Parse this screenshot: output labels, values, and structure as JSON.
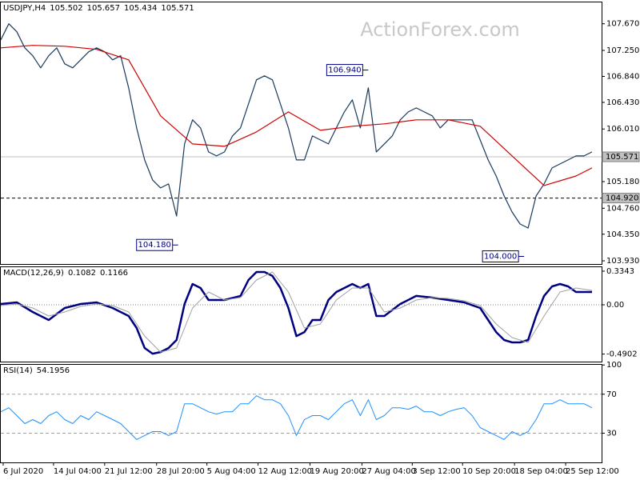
{
  "chart_data": [
    {
      "type": "line",
      "title": "USDJPY,H4",
      "header_values": [
        105.502,
        105.657,
        105.434,
        105.571
      ],
      "watermark": "ActionForex.com",
      "xlim": [
        0,
        376
      ],
      "ylim": [
        103.88,
        108.02
      ],
      "yticks": [
        {
          "value": 107.67,
          "label": "107.670"
        },
        {
          "value": 107.25,
          "label": "107.250"
        },
        {
          "value": 106.84,
          "label": "106.840"
        },
        {
          "value": 106.43,
          "label": "106.430"
        },
        {
          "value": 106.01,
          "label": "106.010"
        },
        {
          "value": 105.18,
          "label": "105.180"
        },
        {
          "value": 104.76,
          "label": "104.760"
        },
        {
          "value": 104.35,
          "label": "104.350"
        },
        {
          "value": 103.93,
          "label": "103.930"
        }
      ],
      "levels": [
        {
          "value": 105.571,
          "style": "solid",
          "color": "#c0c0c0",
          "box": true
        },
        {
          "value": 104.92,
          "label": "104.920",
          "style": "dashed",
          "color": "#000000",
          "box": true
        }
      ],
      "series": [
        {
          "color": "#1a3a5c",
          "width": 1.2,
          "x": [
            0,
            5,
            10,
            15,
            20,
            25,
            30,
            35,
            40,
            45,
            50,
            55,
            60,
            65,
            70,
            75,
            80,
            85,
            90,
            95,
            100,
            105,
            110,
            115,
            120,
            125,
            130,
            135,
            140,
            145,
            150,
            155,
            160,
            165,
            170,
            175,
            180,
            185,
            190,
            195,
            200,
            205,
            210,
            215,
            220,
            225,
            230,
            235,
            240,
            245,
            250,
            255,
            260,
            265,
            270,
            275,
            280,
            285,
            290,
            295,
            300,
            305,
            310,
            315,
            320,
            325,
            330,
            335,
            340,
            345,
            350,
            355,
            360,
            365,
            370
          ],
          "values": [
            107.417,
            107.67,
            107.544,
            107.291,
            107.165,
            106.975,
            107.165,
            107.291,
            107.038,
            106.975,
            107.101,
            107.228,
            107.291,
            107.228,
            107.101,
            107.165,
            106.659,
            106.027,
            105.522,
            105.206,
            105.08,
            105.143,
            104.637,
            105.775,
            106.154,
            106.027,
            105.648,
            105.585,
            105.648,
            105.901,
            106.027,
            106.406,
            106.785,
            106.849,
            106.785,
            106.406,
            106.027,
            105.522,
            105.522,
            105.901,
            105.838,
            105.775,
            106.027,
            106.28,
            106.47,
            106.027,
            106.659,
            105.648,
            105.775,
            105.901,
            106.154,
            106.28,
            106.343,
            106.28,
            106.217,
            106.027,
            106.154,
            106.154,
            106.154,
            106.154,
            105.838,
            105.522,
            105.269,
            104.953,
            104.701,
            104.511,
            104.448,
            104.953,
            105.143,
            105.396,
            105.459,
            105.522,
            105.585,
            105.585,
            105.648
          ]
        },
        {
          "color": "#d00000",
          "width": 1.2,
          "x": [
            0,
            20,
            40,
            60,
            80,
            100,
            120,
            140,
            160,
            180,
            200,
            220,
            240,
            260,
            280,
            300,
            320,
            340,
            360,
            370
          ],
          "values": [
            107.291,
            107.329,
            107.316,
            107.266,
            107.101,
            106.217,
            105.775,
            105.737,
            105.964,
            106.28,
            105.989,
            106.053,
            106.091,
            106.154,
            106.154,
            106.053,
            105.585,
            105.118,
            105.269,
            105.396
          ]
        }
      ],
      "annotations": [
        {
          "x": 230,
          "value": 106.94,
          "label": "106.940"
        },
        {
          "x": 111,
          "value": 104.18,
          "label": "104.180"
        },
        {
          "x": 327.5,
          "value": 104.0,
          "label": "104.000"
        }
      ]
    },
    {
      "type": "line",
      "title": "MACD(12,26,9)",
      "header_values": [
        0.1082,
        0.1166
      ],
      "xlim": [
        0,
        376
      ],
      "ylim": [
        -0.565,
        0.382
      ],
      "yticks": [
        0.3343,
        {
          "value": 0,
          "label": "0.00"
        },
        -0.4902
      ],
      "levels": [
        {
          "value": 0,
          "style": "dotted",
          "color": "#808080"
        }
      ],
      "series": [
        {
          "color": "#000080",
          "width": 2.5,
          "x": [
            0,
            10,
            20,
            30,
            40,
            50,
            60,
            70,
            80,
            85,
            90,
            95,
            100,
            105,
            110,
            115,
            120,
            125,
            130,
            140,
            150,
            155,
            160,
            165,
            170,
            175,
            180,
            185,
            190,
            195,
            200,
            205,
            210,
            215,
            220,
            225,
            230,
            235,
            240,
            250,
            260,
            270,
            280,
            290,
            300,
            305,
            310,
            315,
            320,
            325,
            330,
            335,
            340,
            345,
            350,
            355,
            360,
            365,
            370
          ],
          "values": [
            0.008,
            0.024,
            -0.072,
            -0.151,
            -0.032,
            0.008,
            0.024,
            -0.032,
            -0.111,
            -0.231,
            -0.43,
            -0.486,
            -0.47,
            -0.43,
            -0.35,
            0.008,
            0.207,
            0.167,
            0.048,
            0.048,
            0.088,
            0.247,
            0.326,
            0.326,
            0.287,
            0.167,
            -0.032,
            -0.311,
            -0.271,
            -0.151,
            -0.151,
            0.048,
            0.127,
            0.167,
            0.207,
            0.167,
            0.207,
            -0.111,
            -0.111,
            0.008,
            0.088,
            0.072,
            0.048,
            0.024,
            -0.032,
            -0.151,
            -0.271,
            -0.35,
            -0.374,
            -0.374,
            -0.35,
            -0.111,
            0.088,
            0.183,
            0.207,
            0.183,
            0.127,
            0.127,
            0.127
          ]
        },
        {
          "color": "#a0a0a0",
          "width": 1,
          "x": [
            0,
            10,
            20,
            30,
            40,
            50,
            60,
            70,
            80,
            90,
            100,
            110,
            120,
            130,
            140,
            150,
            160,
            170,
            180,
            190,
            200,
            210,
            220,
            230,
            240,
            250,
            260,
            270,
            280,
            290,
            300,
            310,
            320,
            330,
            340,
            350,
            360,
            370
          ],
          "values": [
            -0.008,
            0.008,
            -0.032,
            -0.111,
            -0.072,
            -0.016,
            0.008,
            -0.008,
            -0.072,
            -0.311,
            -0.47,
            -0.43,
            -0.032,
            0.127,
            0.048,
            0.072,
            0.247,
            0.326,
            0.127,
            -0.231,
            -0.191,
            0.048,
            0.167,
            0.167,
            -0.072,
            -0.032,
            0.048,
            0.072,
            0.064,
            0.04,
            -0.008,
            -0.191,
            -0.326,
            -0.374,
            -0.111,
            0.127,
            0.167,
            0.143
          ]
        }
      ]
    },
    {
      "type": "line",
      "title": "RSI(14)",
      "header_values": [
        54.1956
      ],
      "xlim": [
        0,
        376
      ],
      "ylim": [
        0,
        101
      ],
      "yticks": [
        100,
        70,
        30
      ],
      "levels": [
        {
          "value": 70,
          "style": "dashed",
          "color": "#a0a0a0"
        },
        {
          "value": 30,
          "style": "dashed",
          "color": "#a0a0a0"
        }
      ],
      "series": [
        {
          "color": "#1e90ff",
          "width": 1,
          "x": [
            0,
            5,
            10,
            15,
            20,
            25,
            30,
            35,
            40,
            45,
            50,
            55,
            60,
            65,
            70,
            75,
            80,
            85,
            90,
            95,
            100,
            105,
            110,
            115,
            120,
            125,
            130,
            135,
            140,
            145,
            150,
            155,
            160,
            165,
            170,
            175,
            180,
            185,
            190,
            195,
            200,
            205,
            210,
            215,
            220,
            225,
            230,
            235,
            240,
            245,
            250,
            255,
            260,
            265,
            270,
            275,
            280,
            285,
            290,
            295,
            300,
            305,
            310,
            315,
            320,
            325,
            330,
            335,
            340,
            345,
            350,
            355,
            360,
            365,
            370
          ],
          "values": [
            52.0,
            56.1,
            48.0,
            39.8,
            43.9,
            39.8,
            48.0,
            52.0,
            43.9,
            39.8,
            48.0,
            43.9,
            52.0,
            48.0,
            43.9,
            39.8,
            31.6,
            23.5,
            27.6,
            31.6,
            31.6,
            27.6,
            31.6,
            60.2,
            60.2,
            56.1,
            52.0,
            49.6,
            52.0,
            52.0,
            60.2,
            60.2,
            68.4,
            64.3,
            64.3,
            60.2,
            48.0,
            27.6,
            43.9,
            48.0,
            48.0,
            43.9,
            52.0,
            60.2,
            64.3,
            48.0,
            64.3,
            43.9,
            48.0,
            56.1,
            56.1,
            54.5,
            57.8,
            52.0,
            52.0,
            48.0,
            52.0,
            54.5,
            56.1,
            48.0,
            35.7,
            31.6,
            27.6,
            23.5,
            31.6,
            27.6,
            31.6,
            43.9,
            60.2,
            60.2,
            64.3,
            60.2,
            60.2,
            60.2,
            56.1
          ]
        }
      ],
      "xticks": [
        {
          "value": 1.5,
          "label": "6 Jul 2020"
        },
        {
          "value": 33,
          "label": "14 Jul 04:00"
        },
        {
          "value": 65,
          "label": "21 Jul 12:00"
        },
        {
          "value": 97.5,
          "label": "28 Jul 20:00"
        },
        {
          "value": 129,
          "label": "5 Aug 04:00"
        },
        {
          "value": 161,
          "label": "12 Aug 12:00"
        },
        {
          "value": 193.5,
          "label": "19 Aug 20:00"
        },
        {
          "value": 226,
          "label": "27 Aug 04:00"
        },
        {
          "value": 257.5,
          "label": "3 Sep 12:00"
        },
        {
          "value": 289,
          "label": "10 Sep 20:00"
        },
        {
          "value": 321.5,
          "label": "18 Sep 04:00"
        },
        {
          "value": 353.5,
          "label": "25 Sep 12:00"
        }
      ]
    }
  ]
}
